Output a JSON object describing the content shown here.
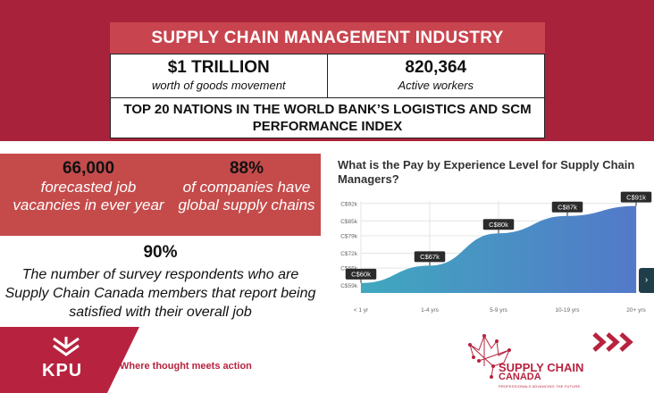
{
  "header": {
    "title": "SUPPLY CHAIN MANAGEMENT INDUSTRY",
    "stat_left": {
      "value": "$1 TRILLION",
      "label": "worth of goods movement"
    },
    "stat_right": {
      "value": "820,364",
      "label": "Active workers"
    },
    "index_line": "TOP 20 NATIONS IN THE WORLD BANK’S LOGISTICS AND SCM PERFORMANCE INDEX"
  },
  "facts": [
    {
      "value": "66,000",
      "text": "forecasted job vacancies in ever year"
    },
    {
      "value": "88%",
      "text": "of companies have global supply chains"
    },
    {
      "value": "90%",
      "text": "The number of survey respondents who are Supply Chain Canada members that report being satisfied with their overall job"
    }
  ],
  "chart_data": {
    "type": "area",
    "title": "What is the Pay by Experience Level for Supply Chain Managers?",
    "categories": [
      "< 1 yr",
      "1-4 yrs",
      "5-9 yrs",
      "10-19 yrs",
      "20+ yrs"
    ],
    "series": [
      {
        "values": [
          60,
          67,
          80,
          87,
          91
        ]
      }
    ],
    "data_labels": [
      "C$60k",
      "C$67k",
      "C$80k",
      "C$87k",
      "C$91k"
    ],
    "y_ticks": [
      "C$59k",
      "C$66k",
      "C$72k",
      "C$79k",
      "C$85k",
      "C$92k"
    ],
    "y_tick_values": [
      59,
      66,
      72,
      79,
      85,
      92
    ],
    "ylim": [
      56,
      93
    ],
    "grid": true,
    "colors": {
      "gradient_start": "#40a8bf",
      "gradient_end": "#5379c9",
      "label_bg": "#2b2b2b"
    }
  },
  "footer": {
    "logo": "KPU",
    "tagline": "Where thought meets action",
    "partner_logo_line1": "SUPPLY CHAIN",
    "partner_logo_line2": "CANADA",
    "partner_logo_line3": "PROFESSIONALS ADVANCING THE FUTURE."
  },
  "colors": {
    "brand_red": "#a7223a",
    "panel_red": "#c54b4b",
    "title_red": "#c8454f"
  }
}
